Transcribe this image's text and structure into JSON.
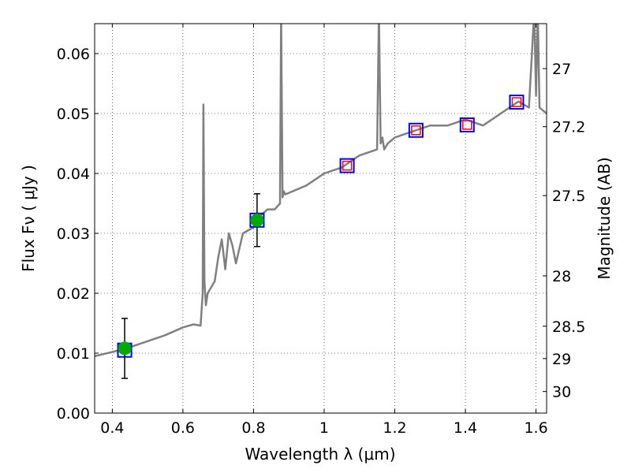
{
  "chart_data": {
    "type": "line",
    "title": "",
    "xlabel": "Wavelength  λ (μm)",
    "ylabel": "Flux  Fν  ( μJy )",
    "ylabel_right": "Magnitude (AB)",
    "xlim": [
      0.35,
      1.63
    ],
    "ylim": [
      0.0,
      0.065
    ],
    "grid": true,
    "x_ticks": [
      0.4,
      0.6,
      0.8,
      1.0,
      1.2,
      1.4,
      1.6
    ],
    "x_tick_labels": [
      "0.4",
      "0.6",
      "0.8",
      "1",
      "1.2",
      "1.4",
      "1.6"
    ],
    "y_ticks": [
      0.0,
      0.01,
      0.02,
      0.03,
      0.04,
      0.05,
      0.06
    ],
    "y_tick_labels": [
      "0.00",
      "0.01",
      "0.02",
      "0.03",
      "0.04",
      "0.05",
      "0.06"
    ],
    "magnitude_ticks": [
      {
        "label": "27",
        "flux": 0.0575
      },
      {
        "label": "27.2",
        "flux": 0.0478
      },
      {
        "label": "27.5",
        "flux": 0.0363
      },
      {
        "label": "28",
        "flux": 0.0229
      },
      {
        "label": "28.5",
        "flux": 0.0145
      },
      {
        "label": "29",
        "flux": 0.0091
      },
      {
        "label": "30",
        "flux": 0.0036
      }
    ],
    "series": [
      {
        "kind": "spectrum",
        "color": "#808080",
        "x": [
          0.35,
          0.4,
          0.45,
          0.5,
          0.55,
          0.6,
          0.63,
          0.65,
          0.656,
          0.658,
          0.661,
          0.665,
          0.67,
          0.69,
          0.7,
          0.71,
          0.72,
          0.73,
          0.74,
          0.75,
          0.77,
          0.8,
          0.82,
          0.84,
          0.86,
          0.875,
          0.878,
          0.882,
          0.886,
          0.89,
          0.95,
          1.0,
          1.05,
          1.1,
          1.15,
          1.155,
          1.16,
          1.165,
          1.17,
          1.18,
          1.2,
          1.25,
          1.3,
          1.35,
          1.4,
          1.45,
          1.5,
          1.55,
          1.58,
          1.595,
          1.6,
          1.605,
          1.61,
          1.63
        ],
        "y": [
          0.0095,
          0.0102,
          0.011,
          0.012,
          0.013,
          0.0143,
          0.0148,
          0.0146,
          0.02,
          0.0515,
          0.022,
          0.018,
          0.02,
          0.022,
          0.026,
          0.029,
          0.024,
          0.03,
          0.028,
          0.025,
          0.03,
          0.031,
          0.033,
          0.034,
          0.034,
          0.035,
          0.067,
          0.036,
          0.037,
          0.0365,
          0.038,
          0.04,
          0.041,
          0.043,
          0.044,
          0.067,
          0.045,
          0.046,
          0.044,
          0.045,
          0.046,
          0.047,
          0.048,
          0.048,
          0.049,
          0.048,
          0.05,
          0.052,
          0.051,
          0.067,
          0.053,
          0.067,
          0.051,
          0.05
        ]
      },
      {
        "kind": "observed-photometry",
        "color": "#00aa00",
        "x": [
          0.435,
          0.81
        ],
        "y": [
          0.0108,
          0.0322
        ],
        "err": [
          0.005,
          0.0044
        ]
      },
      {
        "kind": "model-photometry",
        "color": "#0000ff",
        "x": [
          0.435,
          0.81,
          1.065,
          1.26,
          1.405,
          1.545
        ],
        "y": [
          0.0105,
          0.0322,
          0.0413,
          0.0472,
          0.0481,
          0.0519
        ]
      },
      {
        "kind": "model-photometry-inner",
        "color": "#ff0000",
        "x": [
          1.065,
          1.26,
          1.405,
          1.545
        ],
        "y": [
          0.0413,
          0.0472,
          0.0481,
          0.0519
        ]
      }
    ]
  }
}
